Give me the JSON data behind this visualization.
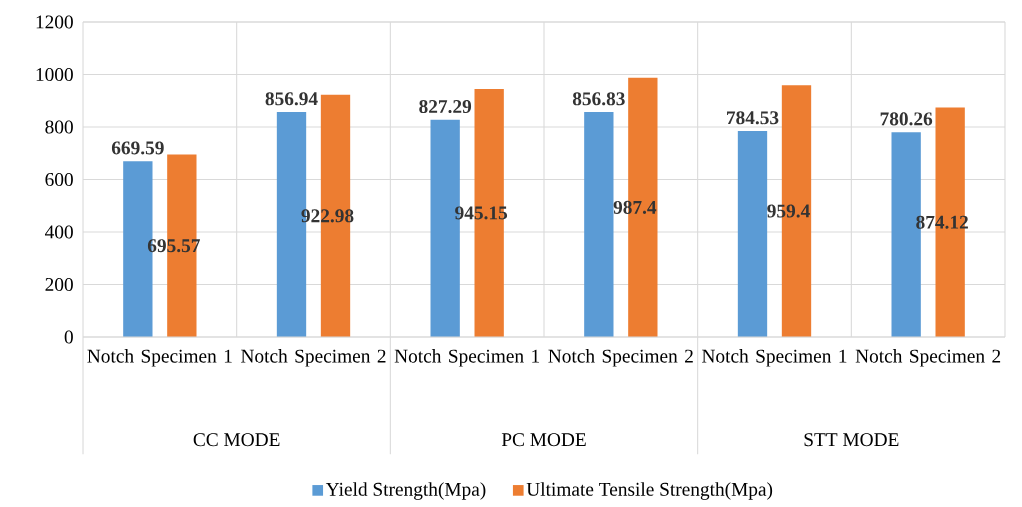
{
  "chart_data": {
    "type": "bar",
    "categories": [
      "Notch Specimen 1",
      "Notch Specimen 2",
      "Notch Specimen 1",
      "Notch Specimen 2",
      "Notch Specimen 1",
      "Notch Specimen 2"
    ],
    "annotations": [
      "CC MODE",
      "PC MODE",
      "STT MODE"
    ],
    "series": [
      {
        "name": "Yield Strength(Mpa)",
        "color": "#5b9bd5",
        "values": [
          669.59,
          856.94,
          827.29,
          856.83,
          784.53,
          780.26
        ]
      },
      {
        "name": "Ultimate Tensile Strength(Mpa)",
        "color": "#ed7d31",
        "values": [
          695.57,
          922.98,
          945.15,
          987.4,
          959.4,
          874.12
        ]
      }
    ],
    "ylim": [
      0,
      1200
    ],
    "yticks": [
      0,
      200,
      400,
      600,
      800,
      1000,
      1200
    ],
    "grid": "y",
    "legend": "bottom",
    "data_labels": true
  }
}
